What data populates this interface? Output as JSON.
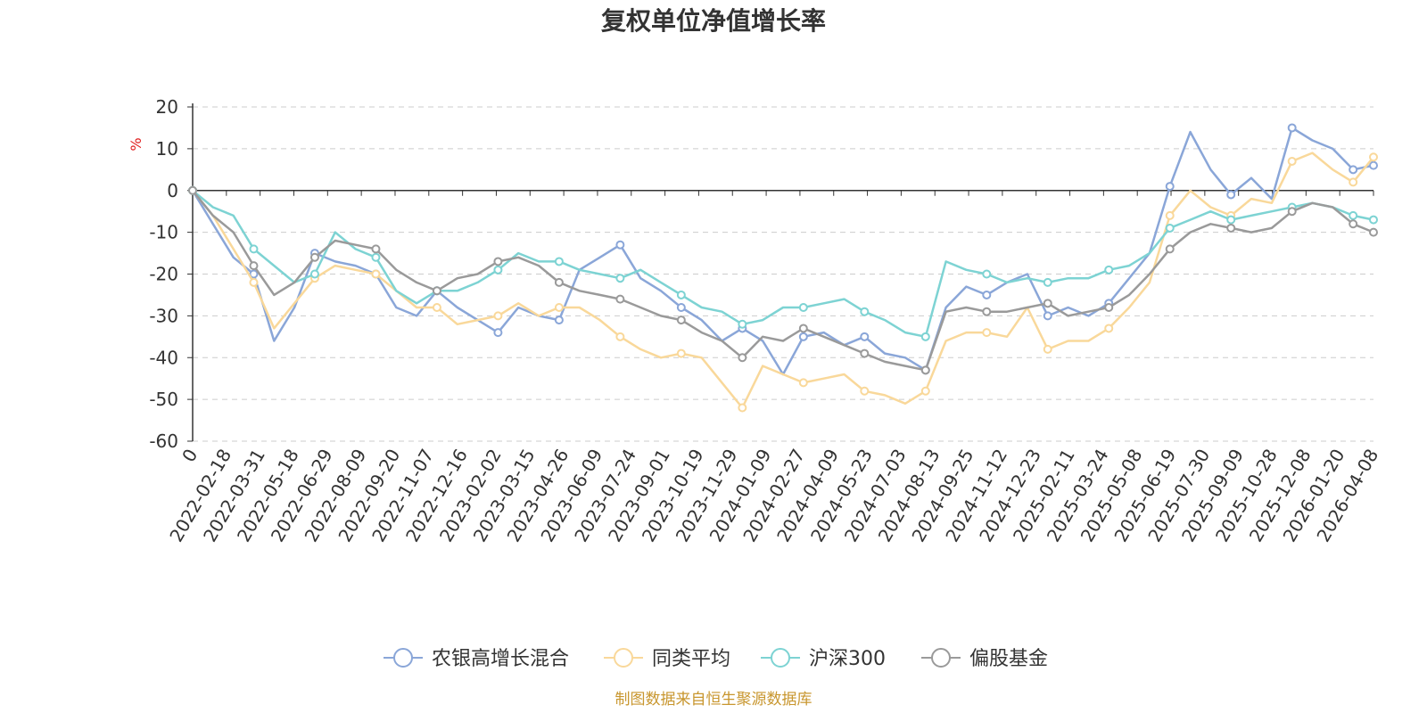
{
  "chart_data": {
    "type": "line",
    "title": "复权单位净值增长率",
    "ylabel": "%",
    "ylim": [
      -60,
      20
    ],
    "yticks": [
      20,
      10,
      0,
      -10,
      -20,
      -30,
      -40,
      -50,
      -60
    ],
    "grid": true,
    "legend_position": "bottom",
    "x_tick_labels": [
      "0",
      "2022-02-18",
      "2022-03-31",
      "2022-05-18",
      "2022-06-29",
      "2022-08-09",
      "2022-09-20",
      "2022-11-07",
      "2022-12-16",
      "2023-02-02",
      "2023-03-15",
      "2023-04-26",
      "2023-06-09",
      "2023-07-24",
      "2023-09-01",
      "2023-10-19",
      "2023-11-29",
      "2024-01-09",
      "2024-02-27",
      "2024-04-09",
      "2024-05-23",
      "2024-07-03",
      "2024-08-13",
      "2024-09-25",
      "2024-11-12",
      "2024-12-23",
      "2025-02-11",
      "2025-03-24",
      "2025-05-08",
      "2025-06-19",
      "2025-07-30",
      "2025-09-09",
      "2025-10-28",
      "2025-12-08",
      "2026-01-20",
      "2026-04-08"
    ],
    "series": [
      {
        "name": "农银高增长混合",
        "color": "#8aa6d8",
        "values": [
          0,
          -8,
          -16,
          -20,
          -36,
          -28,
          -15,
          -17,
          -18,
          -20,
          -28,
          -30,
          -24,
          -28,
          -31,
          -34,
          -28,
          -30,
          -31,
          -19,
          -16,
          -13,
          -21,
          -24,
          -28,
          -31,
          -36,
          -33,
          -36,
          -44,
          -35,
          -34,
          -37,
          -35,
          -39,
          -40,
          -43,
          -28,
          -23,
          -25,
          -22,
          -20,
          -30,
          -28,
          -30,
          -27,
          -21,
          -15,
          1,
          14,
          5,
          -1,
          3,
          -2,
          15,
          12,
          10,
          5,
          6
        ]
      },
      {
        "name": "同类平均",
        "color": "#f9d89a",
        "values": [
          0,
          -6,
          -14,
          -22,
          -33,
          -27,
          -21,
          -18,
          -19,
          -20,
          -24,
          -28,
          -28,
          -32,
          -31,
          -30,
          -27,
          -30,
          -28,
          -28,
          -31,
          -35,
          -38,
          -40,
          -39,
          -40,
          -46,
          -52,
          -42,
          -44,
          -46,
          -45,
          -44,
          -48,
          -49,
          -51,
          -48,
          -36,
          -34,
          -34,
          -35,
          -28,
          -38,
          -36,
          -36,
          -33,
          -28,
          -22,
          -6,
          0,
          -4,
          -6,
          -2,
          -3,
          7,
          9,
          5,
          2,
          8
        ]
      },
      {
        "name": "沪深300",
        "color": "#7dd3d3",
        "values": [
          0,
          -4,
          -6,
          -14,
          -18,
          -22,
          -20,
          -10,
          -14,
          -16,
          -24,
          -27,
          -24,
          -24,
          -22,
          -19,
          -15,
          -17,
          -17,
          -19,
          -20,
          -21,
          -19,
          -22,
          -25,
          -28,
          -29,
          -32,
          -31,
          -28,
          -28,
          -27,
          -26,
          -29,
          -31,
          -34,
          -35,
          -17,
          -19,
          -20,
          -22,
          -21,
          -22,
          -21,
          -21,
          -19,
          -18,
          -15,
          -9,
          -7,
          -5,
          -7,
          -6,
          -5,
          -4,
          -3,
          -4,
          -6,
          -7
        ]
      },
      {
        "name": "偏股基金",
        "color": "#9a9a9a",
        "values": [
          0,
          -6,
          -10,
          -18,
          -25,
          -22,
          -16,
          -12,
          -13,
          -14,
          -19,
          -22,
          -24,
          -21,
          -20,
          -17,
          -16,
          -18,
          -22,
          -24,
          -25,
          -26,
          -28,
          -30,
          -31,
          -34,
          -36,
          -40,
          -35,
          -36,
          -33,
          -35,
          -37,
          -39,
          -41,
          -42,
          -43,
          -29,
          -28,
          -29,
          -29,
          -28,
          -27,
          -30,
          -29,
          -28,
          -25,
          -20,
          -14,
          -10,
          -8,
          -9,
          -10,
          -9,
          -5,
          -3,
          -4,
          -8,
          -10
        ]
      }
    ]
  },
  "footer": {
    "source": "制图数据来自恒生聚源数据库"
  }
}
